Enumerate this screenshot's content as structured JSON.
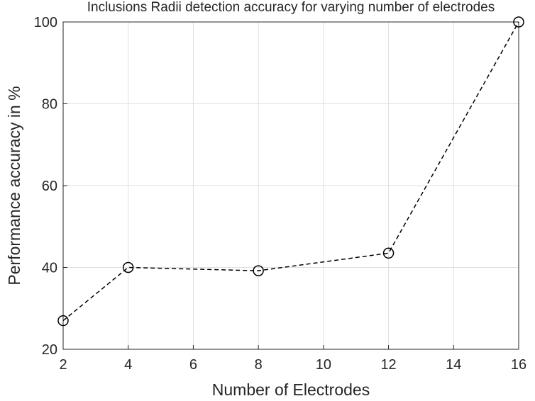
{
  "chart_data": {
    "type": "line",
    "title": "Inclusions Radii detection accuracy for varying number of electrodes",
    "xlabel": "Number of Electrodes",
    "ylabel": "Performance accuracy in %",
    "x": [
      2,
      4,
      8,
      12,
      16
    ],
    "series": [
      {
        "color": "#000000",
        "values": [
          27,
          40,
          39.2,
          43.5,
          100
        ]
      }
    ],
    "xlim": [
      2,
      16
    ],
    "xticks": [
      2,
      4,
      6,
      8,
      10,
      12,
      14,
      16
    ],
    "ylim": [
      20,
      100
    ],
    "yticks": [
      20,
      40,
      60,
      80,
      100
    ],
    "grid": true
  }
}
